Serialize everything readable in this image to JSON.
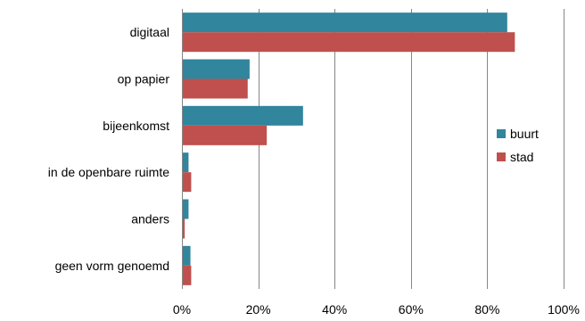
{
  "chart_data": {
    "type": "bar",
    "orientation": "horizontal",
    "title": "",
    "xlabel": "",
    "ylabel": "",
    "categories": [
      "digitaal",
      "op papier",
      "bijeenkomst",
      "in de openbare ruimte",
      "anders",
      "geen vorm genoemd"
    ],
    "category_labels": [
      "digitaal",
      "op papier",
      "bijeenkomst",
      "in de openbare ruimte",
      "anders",
      "geen vorm genoemd"
    ],
    "series": [
      {
        "name": "buurt",
        "color": "#31859c",
        "values": [
          85,
          17.5,
          31.5,
          1.5,
          1.5,
          2
        ]
      },
      {
        "name": "stad",
        "color": "#c0504d",
        "values": [
          87,
          17,
          22,
          2.2,
          0.5,
          2.2
        ]
      }
    ],
    "xlim": [
      0,
      100
    ],
    "xticks": [
      0,
      20,
      40,
      60,
      80,
      100
    ],
    "xtick_labels": [
      "0%",
      "20%",
      "40%",
      "60%",
      "80%",
      "100%"
    ],
    "grid": "vertical",
    "legend_position": "right"
  }
}
